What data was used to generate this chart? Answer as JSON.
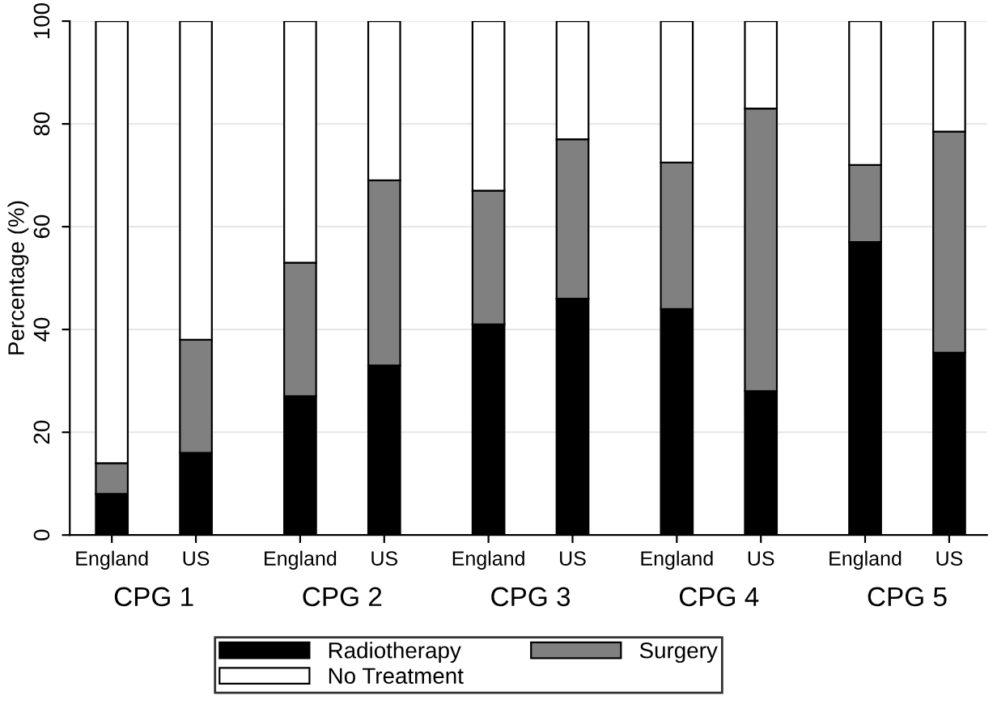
{
  "chart_data": {
    "type": "bar",
    "stacked": true,
    "ylabel": "Percentage (%)",
    "categories": [
      "England",
      "US",
      "England",
      "US",
      "England",
      "US",
      "England",
      "US",
      "England",
      "US"
    ],
    "annotations": [
      "CPG 1",
      "CPG 2",
      "CPG 3",
      "CPG 4",
      "CPG 5"
    ],
    "series": [
      {
        "name": "Radiotherapy",
        "color": "#000000",
        "values": [
          8,
          16,
          27,
          33,
          41,
          46,
          44,
          28,
          57,
          35.5
        ]
      },
      {
        "name": "Surgery",
        "color": "#808080",
        "values": [
          6,
          22,
          26,
          36,
          26,
          31,
          28.5,
          55,
          15,
          43
        ]
      },
      {
        "name": "No Treatment",
        "color": "#ffffff",
        "values": [
          86,
          62,
          47,
          31,
          33,
          23,
          27.5,
          17,
          28,
          21.5
        ]
      }
    ],
    "ylim": [
      0,
      100
    ],
    "yticks": [
      0,
      20,
      40,
      60,
      80,
      100
    ],
    "grid": "y",
    "legend": "bottom"
  }
}
